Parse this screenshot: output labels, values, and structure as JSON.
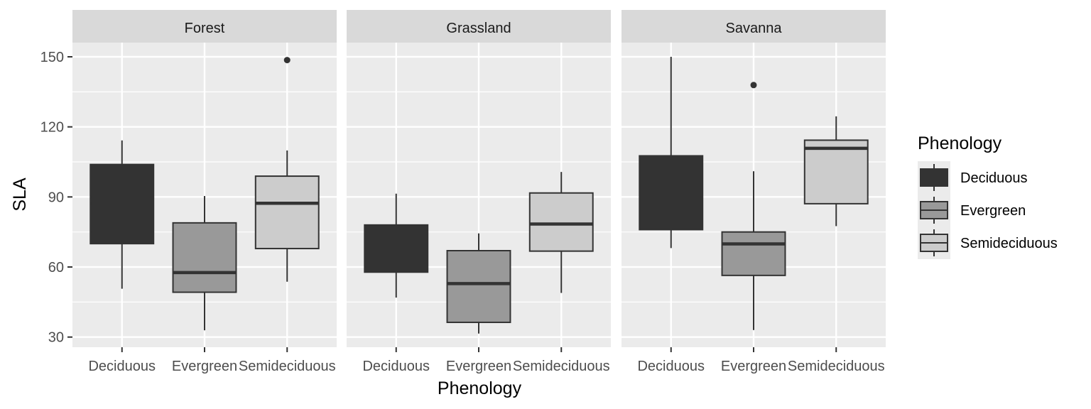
{
  "chart_data": {
    "type": "boxplot",
    "title": "",
    "xlabel": "Phenology",
    "ylabel": "SLA",
    "ylim": [
      23.5,
      155
    ],
    "yticks": [
      30,
      60,
      90,
      120,
      150
    ],
    "ytick_labels": [
      "30",
      "60",
      "90",
      "120",
      "150"
    ],
    "categories": [
      "Deciduous",
      "Evergreen",
      "Semideciduous"
    ],
    "grid": true,
    "facets": [
      {
        "name": "Forest",
        "boxes": [
          {
            "category": "Deciduous",
            "whisker_low": 50.7,
            "q1": 70.0,
            "median": 87.0,
            "q3": 103.9,
            "whisker_high": 114.2,
            "outliers": []
          },
          {
            "category": "Evergreen",
            "whisker_low": 32.9,
            "q1": 49.2,
            "median": 57.6,
            "q3": 78.9,
            "whisker_high": 90.4,
            "outliers": []
          },
          {
            "category": "Semideciduous",
            "whisker_low": 53.7,
            "q1": 67.9,
            "median": 87.3,
            "q3": 98.9,
            "whisker_high": 109.9,
            "outliers": [
              148.6
            ]
          }
        ]
      },
      {
        "name": "Grassland",
        "boxes": [
          {
            "category": "Deciduous",
            "whisker_low": 46.9,
            "q1": 57.8,
            "median": 68.0,
            "q3": 78.0,
            "whisker_high": 91.4,
            "outliers": []
          },
          {
            "category": "Evergreen",
            "whisker_low": 31.5,
            "q1": 36.3,
            "median": 52.9,
            "q3": 67.0,
            "whisker_high": 74.4,
            "outliers": []
          },
          {
            "category": "Semideciduous",
            "whisker_low": 48.9,
            "q1": 66.8,
            "median": 78.4,
            "q3": 91.7,
            "whisker_high": 100.7,
            "outliers": []
          }
        ]
      },
      {
        "name": "Savanna",
        "boxes": [
          {
            "category": "Deciduous",
            "whisker_low": 68.1,
            "q1": 76.0,
            "median": 92.0,
            "q3": 107.6,
            "whisker_high": 150.0,
            "outliers": []
          },
          {
            "category": "Evergreen",
            "whisker_low": 33.0,
            "q1": 56.4,
            "median": 69.9,
            "q3": 75.0,
            "whisker_high": 101.0,
            "outliers": [
              137.9
            ]
          },
          {
            "category": "Semideciduous",
            "whisker_low": 77.5,
            "q1": 87.1,
            "median": 110.8,
            "q3": 114.3,
            "whisker_high": 124.5,
            "outliers": []
          }
        ]
      }
    ],
    "legend": {
      "title": "Phenology",
      "position": "right",
      "entries": [
        {
          "label": "Deciduous",
          "fill": "#333333"
        },
        {
          "label": "Evergreen",
          "fill": "#999999"
        },
        {
          "label": "Semideciduous",
          "fill": "#cccccc"
        }
      ]
    },
    "colors": {
      "panel_bg": "#ebebeb",
      "strip_bg": "#d9d9d9",
      "grid": "#ffffff",
      "outline": "#333333"
    }
  }
}
